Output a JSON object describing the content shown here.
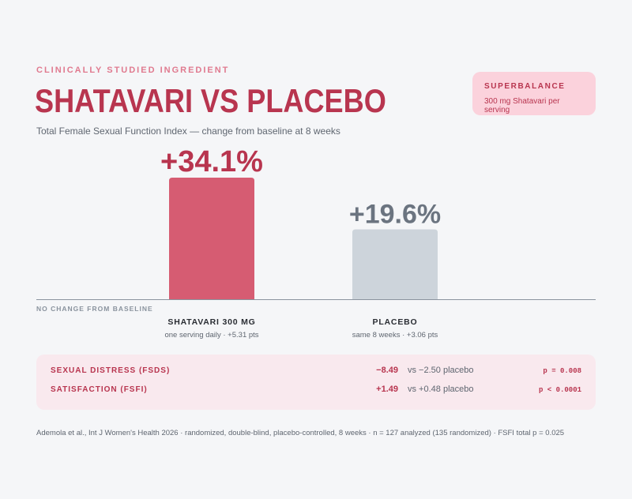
{
  "eyebrow": "CLINICALLY STUDIED INGREDIENT",
  "title": "SHATAVARI VS PLACEBO",
  "subtitle": "Total Female Sexual Function Index — change from baseline at 8 weeks",
  "brand": {
    "name": "SUPERBALANCE",
    "description": "300 mg Shatavari per serving"
  },
  "chart_data": {
    "type": "bar",
    "title": "SHATAVARI VS PLACEBO",
    "subtitle": "Total Female Sexual Function Index — change from baseline at 8 weeks",
    "categories": [
      "SHATAVARI 300 MG",
      "PLACEBO"
    ],
    "category_subtitles": [
      "one serving daily · +5.31 pts",
      "same 8 weeks · +3.06 pts"
    ],
    "values": [
      34.1,
      19.6
    ],
    "value_labels": [
      "+34.1%",
      "+19.6%"
    ],
    "baseline_label": "NO CHANGE FROM BASELINE",
    "ylim": [
      0,
      34.1
    ],
    "colors": [
      "#d65c72",
      "#cdd4db"
    ],
    "grid": false
  },
  "stats": [
    {
      "label": "SEXUAL DISTRESS (FSDS)",
      "value": "−8.49",
      "comparison": "vs −2.50 placebo",
      "p": "p = 0.008"
    },
    {
      "label": "SATISFACTION (FSFI)",
      "value": "+1.49",
      "comparison": "vs +0.48 placebo",
      "p": "p < 0.0001"
    }
  ],
  "footnote": "Ademola et al., Int J Women's Health 2026 · randomized, double-blind, placebo-controlled, 8 weeks · n = 127 analyzed (135 randomized) · FSFI total p = 0.025"
}
